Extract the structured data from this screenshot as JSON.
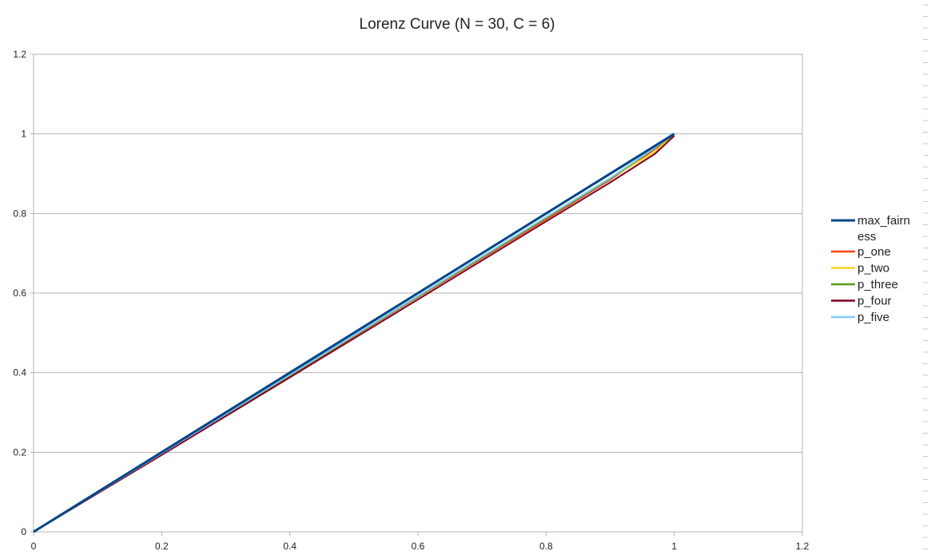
{
  "chart_data": {
    "type": "line",
    "title": "Lorenz Curve (N = 30, C = 6)",
    "xlabel": "",
    "ylabel": "",
    "xlim": [
      0,
      1.2
    ],
    "ylim": [
      0,
      1.2
    ],
    "x_ticks": [
      0,
      0.2,
      0.4,
      0.6,
      0.8,
      1,
      1.2
    ],
    "y_ticks": [
      0,
      0.2,
      0.4,
      0.6,
      0.8,
      1,
      1.2
    ],
    "x_tick_labels": [
      "0",
      "0.2",
      "0.4",
      "0.6",
      "0.8",
      "1",
      "1.2"
    ],
    "y_tick_labels": [
      "0",
      "0.2",
      "0.4",
      "0.6",
      "0.8",
      "1",
      "1.2"
    ],
    "grid": "horizontal",
    "legend_position": "right",
    "series": [
      {
        "name": "max_fairness",
        "color": "#004586",
        "x": [
          0,
          0.2,
          0.4,
          0.6,
          0.8,
          1
        ],
        "y": [
          0,
          0.2,
          0.4,
          0.6,
          0.8,
          1
        ]
      },
      {
        "name": "p_one",
        "color": "#ff420e",
        "x": [
          0,
          0.2,
          0.4,
          0.6,
          0.8,
          0.9,
          1
        ],
        "y": [
          0,
          0.195,
          0.392,
          0.59,
          0.785,
          0.885,
          0.995
        ]
      },
      {
        "name": "p_two",
        "color": "#ffd320",
        "x": [
          0,
          0.2,
          0.4,
          0.6,
          0.8,
          0.9,
          0.97,
          1
        ],
        "y": [
          0,
          0.197,
          0.394,
          0.592,
          0.79,
          0.888,
          0.955,
          1
        ]
      },
      {
        "name": "p_three",
        "color": "#579d1c",
        "x": [
          0,
          0.2,
          0.4,
          0.6,
          0.8,
          0.9,
          1
        ],
        "y": [
          0,
          0.196,
          0.393,
          0.591,
          0.788,
          0.887,
          0.998
        ]
      },
      {
        "name": "p_four",
        "color": "#7e0021",
        "x": [
          0,
          0.2,
          0.4,
          0.6,
          0.8,
          0.9,
          0.97,
          1
        ],
        "y": [
          0,
          0.193,
          0.388,
          0.584,
          0.78,
          0.878,
          0.95,
          0.995
        ]
      },
      {
        "name": "p_five",
        "color": "#83caff",
        "x": [
          0,
          0.2,
          0.4,
          0.6,
          0.8,
          0.9,
          1
        ],
        "y": [
          0,
          0.197,
          0.395,
          0.593,
          0.791,
          0.889,
          0.999
        ]
      }
    ]
  },
  "legend": {
    "max_fairness_line1": "max_fairn",
    "max_fairness_line2": "ess"
  }
}
